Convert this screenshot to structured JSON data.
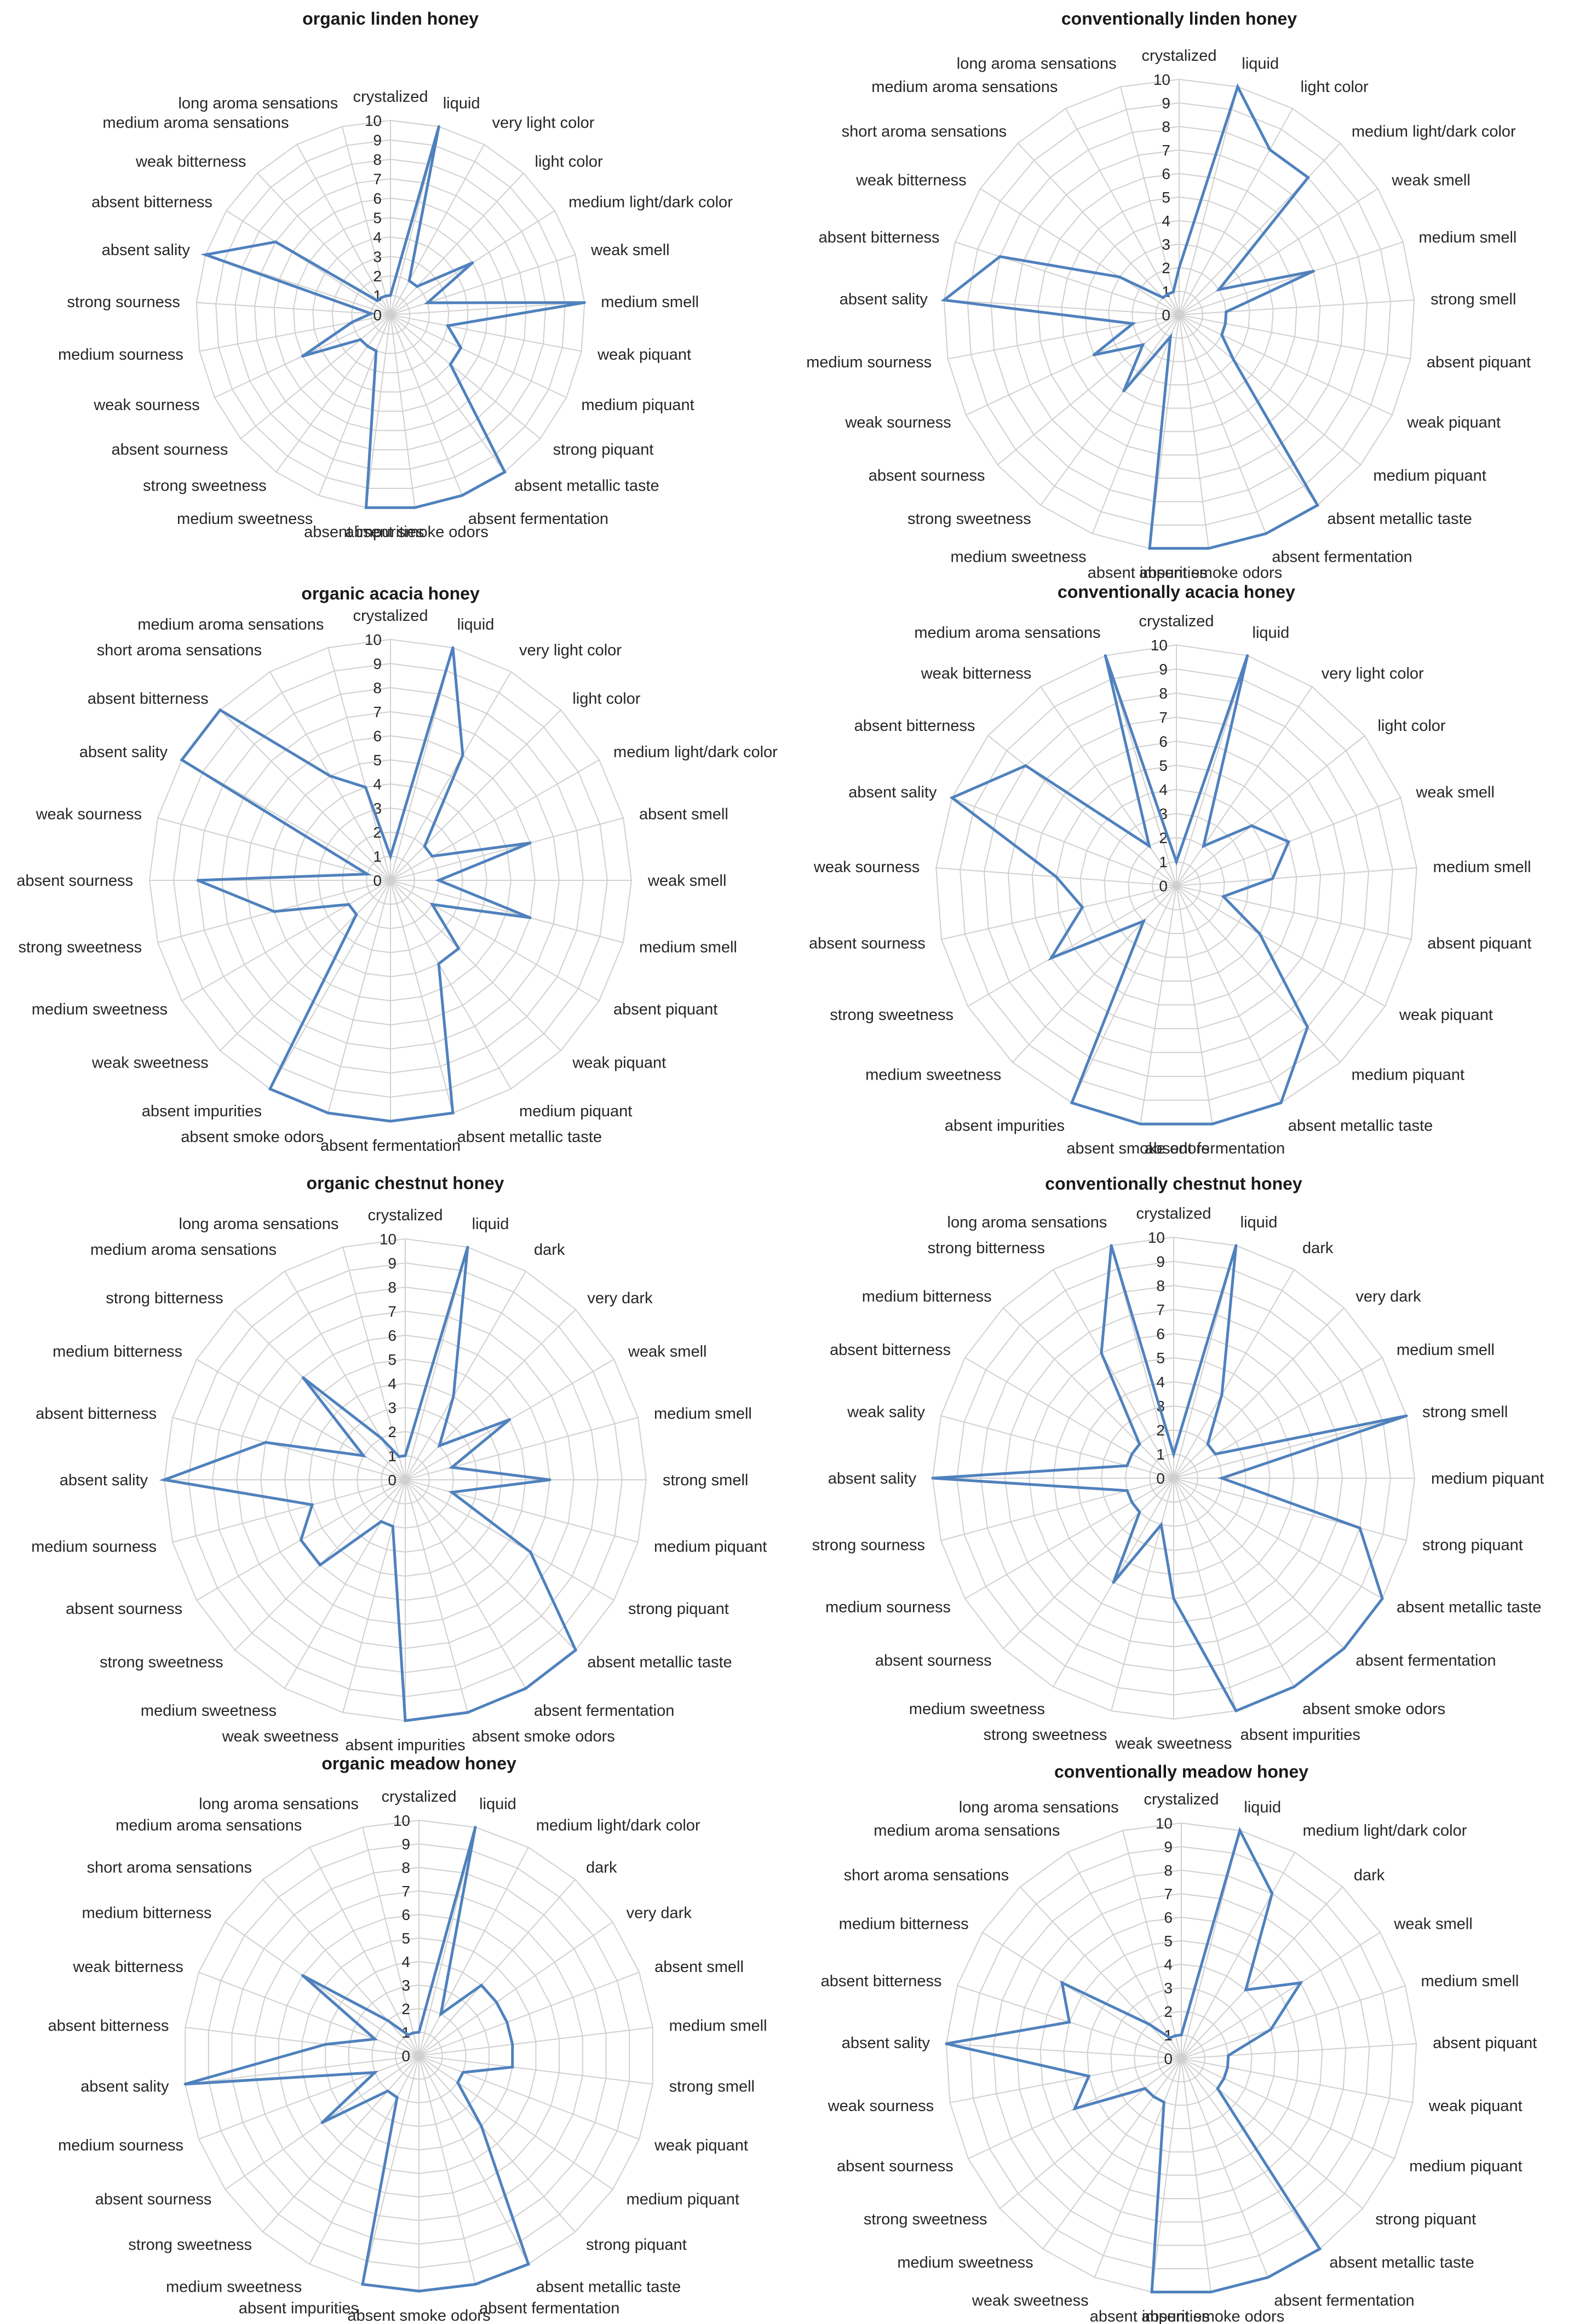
{
  "chart_style": {
    "series_color": "#4f81bd",
    "grid_color": "#d0d0d0",
    "text_color": "#262626"
  },
  "chart_data": [
    {
      "type": "radar",
      "title": "organic linden honey",
      "rlim": [
        0,
        10
      ],
      "ticks": [
        "0",
        "1",
        "2",
        "3",
        "4",
        "5",
        "6",
        "7",
        "8",
        "9",
        "10"
      ],
      "categories": [
        "crystalized",
        "liquid",
        "very light color",
        "light color",
        "medium light/dark color",
        "weak smell",
        "medium smell",
        "weak piquant",
        "medium piquant",
        "strong piquant",
        "absent metallic taste",
        "absent  fermentation",
        "absent smoke odors",
        "absent impurities",
        "medium sweetness",
        "strong sweetness",
        "absent sourness",
        "weak sourness",
        "medium sourness",
        "strong sourness",
        "absent sality",
        "absent bitterness",
        "weak bitterness",
        "medium aroma sensations",
        "long aroma sensations"
      ],
      "values": [
        1,
        10,
        2,
        2,
        5,
        2,
        10,
        3,
        4,
        4,
        10,
        10,
        10,
        10,
        2,
        2,
        2,
        5,
        2,
        1,
        10,
        7,
        1,
        1,
        1
      ]
    },
    {
      "type": "radar",
      "title": "conventionally linden honey",
      "rlim": [
        0,
        10
      ],
      "ticks": [
        "0",
        "1",
        "2",
        "3",
        "4",
        "5",
        "6",
        "7",
        "8",
        "9",
        "10"
      ],
      "categories": [
        "crystalized",
        "liquid",
        "light color",
        "medium light/dark color",
        "weak smell",
        "medium smell",
        "strong smell",
        "absent piquant",
        "weak piquant",
        "medium piquant",
        "absent metallic taste",
        "absent  fermentation",
        "absent smoke odors",
        "absent impurities",
        "medium sweetness",
        "strong sweetness",
        "absent sourness",
        "weak sourness",
        "medium sourness",
        "absent sality",
        "absent bitterness",
        "weak bitterness",
        "short aroma sensations",
        "medium aroma sensations",
        "long aroma sensations"
      ],
      "values": [
        2,
        10,
        8,
        8,
        2,
        6,
        2,
        2,
        2,
        3,
        10,
        10,
        10,
        10,
        1,
        4,
        2,
        4,
        2,
        10,
        8,
        3,
        1,
        1,
        1
      ]
    },
    {
      "type": "radar",
      "title": "organic acacia honey",
      "rlim": [
        0,
        10
      ],
      "ticks": [
        "0",
        "1",
        "2",
        "3",
        "4",
        "5",
        "6",
        "7",
        "8",
        "9",
        "10"
      ],
      "categories": [
        "crystalized",
        "liquid",
        "very light color",
        "light color",
        "medium light/dark color",
        "absent smell",
        "weak smell",
        "medium smell",
        "absent piquant",
        "weak piquant",
        "medium piquant",
        "absent metallic taste",
        "absent  fermentation",
        "absent smoke odors",
        "absent impurities",
        "weak sweetness",
        "medium sweetness",
        "strong sweetness",
        "absent sourness",
        "weak sourness",
        "absent sality",
        "absent bitterness",
        "short aroma sensations",
        "medium aroma sensations"
      ],
      "values": [
        1,
        10,
        6,
        2,
        2,
        6,
        2,
        6,
        2,
        4,
        4,
        10,
        10,
        10,
        10,
        2,
        2,
        5,
        8,
        1,
        10,
        10,
        5,
        4
      ]
    },
    {
      "type": "radar",
      "title": "conventionally  acacia honey",
      "rlim": [
        0,
        10
      ],
      "ticks": [
        "0",
        "1",
        "2",
        "3",
        "4",
        "5",
        "6",
        "7",
        "8",
        "9",
        "10"
      ],
      "categories": [
        "crystalized",
        "liquid",
        "very light color",
        "light color",
        "weak smell",
        "medium smell",
        "absent piquant",
        "weak piquant",
        "medium piquant",
        "absent metallic taste",
        "absent  fermentation",
        "absent smoke odors",
        "absent impurities",
        "medium sweetness",
        "strong sweetness",
        "absent sourness",
        "weak sourness",
        "absent sality",
        "absent bitterness",
        "weak bitterness",
        "medium aroma sensations"
      ],
      "values": [
        1,
        10,
        2,
        4,
        5,
        4,
        2,
        4,
        8,
        10,
        10,
        10,
        10,
        2,
        6,
        4,
        5,
        10,
        8,
        2,
        10
      ]
    },
    {
      "type": "radar",
      "title": "organic chestnut honey",
      "rlim": [
        0,
        10
      ],
      "ticks": [
        "0",
        "1",
        "2",
        "3",
        "4",
        "5",
        "6",
        "7",
        "8",
        "9",
        "10"
      ],
      "categories": [
        "crystalized",
        "liquid",
        "dark",
        "very dark",
        "weak smell",
        "medium smell",
        "strong smell",
        "medium piquant",
        "strong piquant",
        "absent metallic taste",
        "absent  fermentation",
        "absent smoke odors",
        "absent impurities",
        "weak sweetness",
        "medium sweetness",
        "strong sweetness",
        "absent sourness",
        "medium sourness",
        "absent sality",
        "absent bitterness",
        "medium bitterness",
        "strong bitterness",
        "medium aroma sensations",
        "long aroma sensations"
      ],
      "values": [
        1,
        10,
        4,
        2,
        5,
        2,
        6,
        2,
        6,
        10,
        10,
        10,
        10,
        2,
        2,
        5,
        5,
        4,
        10,
        6,
        2,
        6,
        2,
        1
      ]
    },
    {
      "type": "radar",
      "title": "conventionally chestnut honey",
      "rlim": [
        0,
        10
      ],
      "ticks": [
        "0",
        "1",
        "2",
        "3",
        "4",
        "5",
        "6",
        "7",
        "8",
        "9",
        "10"
      ],
      "categories": [
        "crystalized",
        "liquid",
        "dark",
        "very dark",
        "medium smell",
        "strong smell",
        "medium piquant",
        "strong piquant",
        "absent metallic taste",
        "absent  fermentation",
        "absent smoke odors",
        "absent impurities",
        "weak sweetness",
        "strong sweetness",
        "medium sweetness",
        "absent sourness",
        "medium sourness",
        "strong sourness",
        "absent sality",
        "weak sality",
        "absent bitterness",
        "medium bitterness",
        "strong bitterness",
        "long aroma sensations"
      ],
      "values": [
        1,
        10,
        4,
        2,
        2,
        10,
        2,
        8,
        10,
        10,
        10,
        10,
        5,
        2,
        5,
        2,
        2,
        2,
        10,
        2,
        2,
        2,
        6,
        10
      ]
    },
    {
      "type": "radar",
      "title": "organic meadow honey",
      "rlim": [
        0,
        10
      ],
      "ticks": [
        "0",
        "1",
        "2",
        "3",
        "4",
        "5",
        "6",
        "7",
        "8",
        "9",
        "10"
      ],
      "categories": [
        "crystalized",
        "liquid",
        "medium light/dark color",
        "dark",
        "very dark",
        "absent smell",
        "medium smell",
        "strong smell",
        "weak piquant",
        "medium piquant",
        "strong piquant",
        "absent metallic taste",
        "absent  fermentation",
        "absent smoke odors",
        "absent impurities",
        "medium sweetness",
        "strong sweetness",
        "absent sourness",
        "medium sourness",
        "absent sality",
        "absent bitterness",
        "weak bitterness",
        "medium bitterness",
        "short aroma sensations",
        "medium aroma sensations",
        "long aroma sensations"
      ],
      "values": [
        1,
        10,
        2,
        4,
        4,
        4,
        4,
        4,
        2,
        2,
        4,
        10,
        10,
        10,
        10,
        2,
        2,
        5,
        2,
        10,
        4,
        2,
        6,
        2,
        1,
        1
      ]
    },
    {
      "type": "radar",
      "title": "conventionally meadow honey",
      "rlim": [
        0,
        10
      ],
      "ticks": [
        "0",
        "1",
        "2",
        "3",
        "4",
        "5",
        "6",
        "7",
        "8",
        "9",
        "10"
      ],
      "categories": [
        "crystalized",
        "liquid",
        "medium light/dark color",
        "dark",
        "weak smell",
        "medium smell",
        "absent piquant",
        "weak piquant",
        "medium piquant",
        "strong piquant",
        "absent metallic taste",
        "absent  fermentation",
        "absent smoke odors",
        "absent impurities",
        "weak sweetness",
        "medium sweetness",
        "strong sweetness",
        "absent sourness",
        "weak sourness",
        "absent sality",
        "absent bitterness",
        "medium bitterness",
        "short aroma sensations",
        "medium aroma sensations",
        "long aroma sensations"
      ],
      "values": [
        1,
        10,
        8,
        4,
        6,
        4,
        2,
        2,
        2,
        2,
        10,
        10,
        10,
        10,
        2,
        2,
        2,
        5,
        4,
        10,
        5,
        6,
        2,
        1,
        1
      ]
    }
  ]
}
